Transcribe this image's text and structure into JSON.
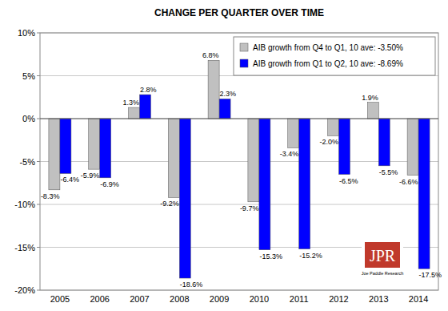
{
  "chart_data": {
    "type": "bar",
    "title": "CHANGE PER QUARTER OVER TIME",
    "categories": [
      "2005",
      "2006",
      "2007",
      "2008",
      "2009",
      "2010",
      "2011",
      "2012",
      "2013",
      "2014"
    ],
    "series": [
      {
        "name": "AIB growth from Q4 to Q1, 10 ave: -3.50%",
        "color": "#c0c0c0",
        "values": [
          -8.3,
          -5.9,
          1.3,
          -9.2,
          6.8,
          -9.7,
          -3.4,
          -2.0,
          1.9,
          -6.6
        ],
        "value_labels": [
          "-8.3%",
          "-5.9%",
          "1.3%",
          "-9.2%",
          "6.8%",
          "-9.7%",
          "-3.4%",
          "-2.0%",
          "1.9%",
          "-6.6%"
        ]
      },
      {
        "name": "AIB growth from Q1 to Q2, 10 ave: -8.69%",
        "color": "#0000ff",
        "values": [
          -6.4,
          -6.9,
          2.8,
          -18.6,
          2.3,
          -15.3,
          -15.2,
          -6.5,
          -5.5,
          -17.5
        ],
        "value_labels": [
          "-6.4%",
          "-6.9%",
          "2.8%",
          "-18.6%",
          "2.3%",
          "-15.3%",
          "-15.2%",
          "-6.5%",
          "-5.5%",
          "-17.5%"
        ]
      }
    ],
    "ylim": [
      -20,
      10
    ],
    "yticks": [
      {
        "value": -20,
        "label": "-20%"
      },
      {
        "value": -15,
        "label": "-15%"
      },
      {
        "value": -10,
        "label": "-10%"
      },
      {
        "value": -5,
        "label": "-5%"
      },
      {
        "value": 0,
        "label": "0%"
      },
      {
        "value": 5,
        "label": "5%"
      },
      {
        "value": 10,
        "label": "10%"
      }
    ],
    "grid": true,
    "legend": "top-right",
    "data_labels": true,
    "annotations": [
      "JPR",
      "Joe Paddle Research"
    ]
  }
}
